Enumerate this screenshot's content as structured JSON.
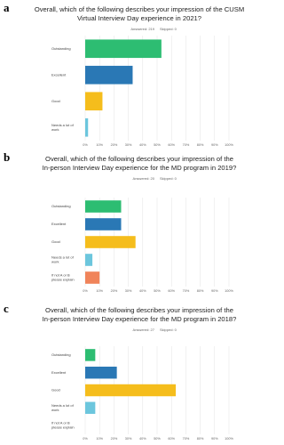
{
  "chart_data": [
    {
      "type": "bar",
      "orientation": "horizontal",
      "label": "a",
      "title": [
        "Overall, which of the following describes your impression of the CUSM",
        "Virtual Interview Day experience in 2021?"
      ],
      "answered": "Answered: 219",
      "skipped": "Skipped: 0",
      "categories": [
        "Outstanding",
        "Excellent",
        "Good",
        "Needs a lot of work"
      ],
      "values": [
        53,
        33,
        12,
        2
      ],
      "colors": [
        "#2dbd72",
        "#2a78b5",
        "#f5bd1c",
        "#6cc6dd"
      ],
      "xlim": [
        0,
        100
      ],
      "xticks": [
        {
          "value": 0,
          "label": "0%"
        },
        {
          "value": 10,
          "label": "10%"
        },
        {
          "value": 20,
          "label": "20%"
        },
        {
          "value": 30,
          "label": "30%"
        },
        {
          "value": 40,
          "label": "40%"
        },
        {
          "value": 50,
          "label": "50%"
        },
        {
          "value": 60,
          "label": "60%"
        },
        {
          "value": 70,
          "label": "70%"
        },
        {
          "value": 80,
          "label": "80%"
        },
        {
          "value": 90,
          "label": "90%"
        },
        {
          "value": 100,
          "label": "100%"
        }
      ],
      "grid": true
    },
    {
      "type": "bar",
      "orientation": "horizontal",
      "label": "b",
      "title": [
        "Overall, which of the following describes your impression of the",
        "In-person Interview Day experience for the MD program in 2019?"
      ],
      "answered": "Answered: 20",
      "skipped": "Skipped: 0",
      "categories": [
        "Outstanding",
        "Excellent",
        "Good",
        "Needs a lot of work",
        "If not A or B please explain"
      ],
      "values": [
        25,
        25,
        35,
        5,
        10
      ],
      "colors": [
        "#2dbd72",
        "#2a78b5",
        "#f5bd1c",
        "#6cc6dd",
        "#f0845a"
      ],
      "xlim": [
        0,
        100
      ],
      "xticks": [
        {
          "value": 0,
          "label": "0%"
        },
        {
          "value": 10,
          "label": "10%"
        },
        {
          "value": 20,
          "label": "20%"
        },
        {
          "value": 30,
          "label": "30%"
        },
        {
          "value": 40,
          "label": "40%"
        },
        {
          "value": 50,
          "label": "50%"
        },
        {
          "value": 60,
          "label": "60%"
        },
        {
          "value": 70,
          "label": "70%"
        },
        {
          "value": 80,
          "label": "80%"
        },
        {
          "value": 90,
          "label": "90%"
        },
        {
          "value": 100,
          "label": "100%"
        }
      ],
      "grid": true
    },
    {
      "type": "bar",
      "orientation": "horizontal",
      "label": "c",
      "title": [
        "Overall, which of the following describes your impression of the",
        "In-person Interview Day experience for the MD program in 2018?"
      ],
      "answered": "Answered: 27",
      "skipped": "Skipped: 0",
      "categories": [
        "Outstanding",
        "Excellent",
        "Good",
        "Needs a lot of work",
        "If not A or B please explain"
      ],
      "values": [
        7,
        22,
        63,
        7,
        0
      ],
      "colors": [
        "#2dbd72",
        "#2a78b5",
        "#f5bd1c",
        "#6cc6dd",
        "#f0845a"
      ],
      "xlim": [
        0,
        100
      ],
      "xticks": [
        {
          "value": 0,
          "label": "0%"
        },
        {
          "value": 10,
          "label": "10%"
        },
        {
          "value": 20,
          "label": "20%"
        },
        {
          "value": 30,
          "label": "30%"
        },
        {
          "value": 40,
          "label": "40%"
        },
        {
          "value": 50,
          "label": "50%"
        },
        {
          "value": 60,
          "label": "60%"
        },
        {
          "value": 70,
          "label": "70%"
        },
        {
          "value": 80,
          "label": "80%"
        },
        {
          "value": 90,
          "label": "90%"
        },
        {
          "value": 100,
          "label": "100%"
        }
      ],
      "grid": true
    }
  ]
}
